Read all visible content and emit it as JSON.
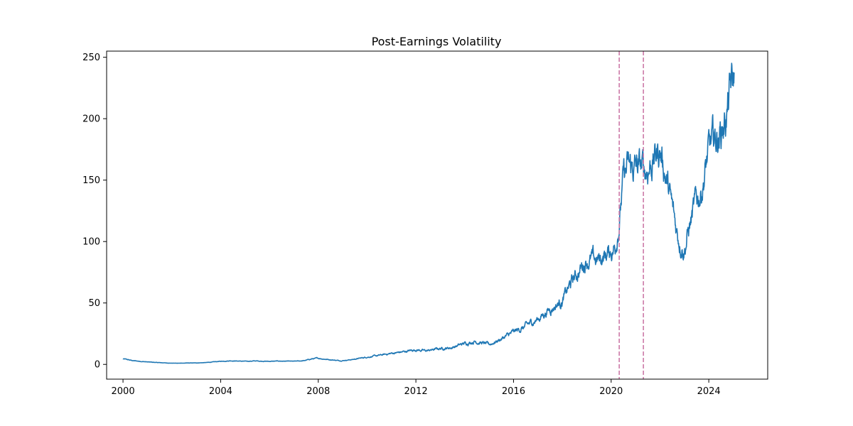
{
  "chart_data": {
    "type": "line",
    "title": "Post-Earnings Volatility",
    "xlabel": "",
    "ylabel": "",
    "xlim": [
      "1999-05-01",
      "2026-06-01"
    ],
    "ylim": [
      -12,
      255
    ],
    "x_ticks": [
      "2000",
      "2004",
      "2008",
      "2012",
      "2016",
      "2020",
      "2024"
    ],
    "y_ticks": [
      0,
      50,
      100,
      150,
      200,
      250
    ],
    "grid": false,
    "legend": "none",
    "colors": {
      "series": "#1f77b4",
      "vlines": "#cc79a7"
    },
    "vlines": [
      "2020-05-01",
      "2021-04-28"
    ],
    "series": [
      {
        "x": [
          "2000-01-01",
          "2000-06-01",
          "2001-01-01",
          "2001-06-01",
          "2002-01-01",
          "2002-06-01",
          "2003-01-01",
          "2003-06-01",
          "2004-01-01",
          "2004-06-01",
          "2005-01-01",
          "2005-06-01",
          "2006-01-01",
          "2006-06-01",
          "2007-01-01",
          "2007-06-01",
          "2007-10-01",
          "2008-01-01",
          "2008-06-01",
          "2008-12-01",
          "2009-06-01",
          "2010-01-01",
          "2010-06-01",
          "2011-01-01",
          "2011-06-01",
          "2012-01-01",
          "2012-06-01",
          "2013-01-01",
          "2013-06-01",
          "2014-01-01",
          "2014-06-01",
          "2015-01-01",
          "2015-06-01",
          "2016-01-01",
          "2016-06-01",
          "2017-01-01",
          "2017-06-01",
          "2018-01-01",
          "2018-06-01",
          "2018-10-01",
          "2019-01-01",
          "2019-06-01",
          "2019-12-01",
          "2020-03-01",
          "2020-05-01",
          "2020-07-01",
          "2020-09-01",
          "2021-01-01",
          "2021-06-01",
          "2021-09-01",
          "2022-01-01",
          "2022-03-01",
          "2022-06-01",
          "2022-09-01",
          "2022-11-01",
          "2023-01-01",
          "2023-04-01",
          "2023-07-01",
          "2023-09-01",
          "2024-01-01",
          "2024-04-01",
          "2024-07-01",
          "2024-10-01",
          "2024-12-01",
          "2025-01-15"
        ],
        "values": [
          4.5,
          3,
          2,
          1.5,
          1,
          1,
          1.2,
          1.5,
          2.5,
          3,
          2.5,
          2.8,
          2.5,
          2.7,
          2.5,
          3,
          4.5,
          5,
          4,
          3,
          4,
          6,
          7,
          9,
          10,
          12,
          11,
          13,
          13.5,
          17,
          19,
          16,
          20,
          26,
          30,
          37,
          44,
          52,
          68,
          78,
          86,
          84,
          91,
          96,
          118,
          150,
          158,
          160,
          158,
          165,
          175,
          162,
          135,
          110,
          100,
          95,
          115,
          132,
          140,
          172,
          182,
          190,
          205,
          225,
          228
        ]
      }
    ]
  }
}
